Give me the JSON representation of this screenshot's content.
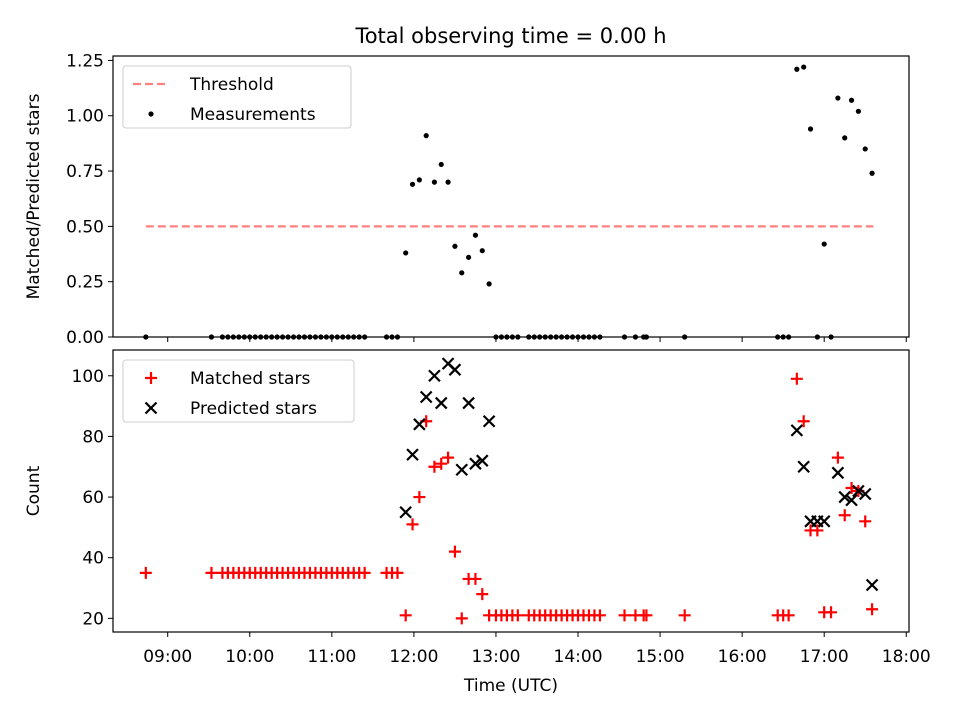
{
  "chart_data": {
    "type": "scatter",
    "title": "Total observing time = 0.00 h",
    "xlabel": "Time (UTC)",
    "x_ticks": [
      "09:00",
      "10:00",
      "11:00",
      "12:00",
      "13:00",
      "14:00",
      "15:00",
      "16:00",
      "17:00",
      "18:00"
    ],
    "x_range": [
      "08:20",
      "18:02"
    ],
    "panels": [
      {
        "ylabel": "Matched/Predicted stars",
        "ylim": [
          0,
          1.27
        ],
        "y_ticks": [
          "0.00",
          "0.25",
          "0.50",
          "0.75",
          "1.00",
          "1.25"
        ],
        "legend": {
          "position": "top-left"
        },
        "series": [
          {
            "name": "Threshold",
            "kind": "dashed-line",
            "color": "#ff8080",
            "points": [
              [
                "08:44",
                0.5
              ],
              [
                "17:36",
                0.5
              ]
            ]
          },
          {
            "name": "Measurements",
            "kind": "dot",
            "color": "#000000",
            "points": [
              [
                "08:44",
                0
              ],
              [
                "09:32",
                0
              ],
              [
                "09:40",
                0
              ],
              [
                "09:44",
                0
              ],
              [
                "09:48",
                0
              ],
              [
                "09:52",
                0
              ],
              [
                "09:56",
                0
              ],
              [
                "10:00",
                0
              ],
              [
                "10:04",
                0
              ],
              [
                "10:08",
                0
              ],
              [
                "10:12",
                0
              ],
              [
                "10:16",
                0
              ],
              [
                "10:20",
                0
              ],
              [
                "10:24",
                0
              ],
              [
                "10:28",
                0
              ],
              [
                "10:32",
                0
              ],
              [
                "10:36",
                0
              ],
              [
                "10:40",
                0
              ],
              [
                "10:44",
                0
              ],
              [
                "10:48",
                0
              ],
              [
                "10:52",
                0
              ],
              [
                "10:56",
                0
              ],
              [
                "11:00",
                0
              ],
              [
                "11:04",
                0
              ],
              [
                "11:08",
                0
              ],
              [
                "11:12",
                0
              ],
              [
                "11:16",
                0
              ],
              [
                "11:20",
                0
              ],
              [
                "11:24",
                0
              ],
              [
                "11:40",
                0
              ],
              [
                "11:44",
                0
              ],
              [
                "11:48",
                0
              ],
              [
                "11:54",
                0.38
              ],
              [
                "11:59",
                0.69
              ],
              [
                "12:04",
                0.71
              ],
              [
                "12:09",
                0.91
              ],
              [
                "12:15",
                0.7
              ],
              [
                "12:20",
                0.78
              ],
              [
                "12:25",
                0.7
              ],
              [
                "12:30",
                0.41
              ],
              [
                "12:35",
                0.29
              ],
              [
                "12:40",
                0.36
              ],
              [
                "12:45",
                0.46
              ],
              [
                "12:50",
                0.39
              ],
              [
                "12:55",
                0.24
              ],
              [
                "13:00",
                0
              ],
              [
                "13:04",
                0
              ],
              [
                "13:08",
                0
              ],
              [
                "13:12",
                0
              ],
              [
                "13:16",
                0
              ],
              [
                "13:24",
                0
              ],
              [
                "13:28",
                0
              ],
              [
                "13:32",
                0
              ],
              [
                "13:36",
                0
              ],
              [
                "13:40",
                0
              ],
              [
                "13:44",
                0
              ],
              [
                "13:48",
                0
              ],
              [
                "13:52",
                0
              ],
              [
                "13:56",
                0
              ],
              [
                "14:00",
                0
              ],
              [
                "14:04",
                0
              ],
              [
                "14:08",
                0
              ],
              [
                "14:12",
                0
              ],
              [
                "14:16",
                0
              ],
              [
                "14:34",
                0
              ],
              [
                "14:42",
                0
              ],
              [
                "14:48",
                0
              ],
              [
                "14:50",
                0
              ],
              [
                "15:18",
                0
              ],
              [
                "16:26",
                0
              ],
              [
                "16:30",
                0
              ],
              [
                "16:34",
                0
              ],
              [
                "16:40",
                1.21
              ],
              [
                "16:45",
                1.22
              ],
              [
                "16:50",
                0.94
              ],
              [
                "16:55",
                0
              ],
              [
                "17:00",
                0.42
              ],
              [
                "17:05",
                0
              ],
              [
                "17:10",
                1.08
              ],
              [
                "17:15",
                0.9
              ],
              [
                "17:20",
                1.07
              ],
              [
                "17:25",
                1.02
              ],
              [
                "17:30",
                0.85
              ],
              [
                "17:35",
                0.74
              ]
            ]
          }
        ]
      },
      {
        "ylabel": "Count",
        "ylim": [
          15.5,
          108.5
        ],
        "y_ticks": [
          "20",
          "40",
          "60",
          "80",
          "100"
        ],
        "legend": {
          "position": "top-left"
        },
        "series": [
          {
            "name": "Matched stars",
            "kind": "plus",
            "color": "#ff0000",
            "points": [
              [
                "08:44",
                35
              ],
              [
                "09:32",
                35
              ],
              [
                "09:40",
                35
              ],
              [
                "09:44",
                35
              ],
              [
                "09:48",
                35
              ],
              [
                "09:52",
                35
              ],
              [
                "09:56",
                35
              ],
              [
                "10:00",
                35
              ],
              [
                "10:04",
                35
              ],
              [
                "10:08",
                35
              ],
              [
                "10:12",
                35
              ],
              [
                "10:16",
                35
              ],
              [
                "10:20",
                35
              ],
              [
                "10:24",
                35
              ],
              [
                "10:28",
                35
              ],
              [
                "10:32",
                35
              ],
              [
                "10:36",
                35
              ],
              [
                "10:40",
                35
              ],
              [
                "10:44",
                35
              ],
              [
                "10:48",
                35
              ],
              [
                "10:52",
                35
              ],
              [
                "10:56",
                35
              ],
              [
                "11:00",
                35
              ],
              [
                "11:04",
                35
              ],
              [
                "11:08",
                35
              ],
              [
                "11:12",
                35
              ],
              [
                "11:16",
                35
              ],
              [
                "11:20",
                35
              ],
              [
                "11:24",
                35
              ],
              [
                "11:40",
                35
              ],
              [
                "11:44",
                35
              ],
              [
                "11:48",
                35
              ],
              [
                "11:54",
                21
              ],
              [
                "11:59",
                51
              ],
              [
                "12:04",
                60
              ],
              [
                "12:09",
                85
              ],
              [
                "12:15",
                70
              ],
              [
                "12:20",
                71
              ],
              [
                "12:25",
                73
              ],
              [
                "12:30",
                42
              ],
              [
                "12:35",
                20
              ],
              [
                "12:40",
                33
              ],
              [
                "12:45",
                33
              ],
              [
                "12:50",
                28
              ],
              [
                "12:55",
                21
              ],
              [
                "13:00",
                21
              ],
              [
                "13:04",
                21
              ],
              [
                "13:08",
                21
              ],
              [
                "13:12",
                21
              ],
              [
                "13:16",
                21
              ],
              [
                "13:24",
                21
              ],
              [
                "13:28",
                21
              ],
              [
                "13:32",
                21
              ],
              [
                "13:36",
                21
              ],
              [
                "13:40",
                21
              ],
              [
                "13:44",
                21
              ],
              [
                "13:48",
                21
              ],
              [
                "13:52",
                21
              ],
              [
                "13:56",
                21
              ],
              [
                "14:00",
                21
              ],
              [
                "14:04",
                21
              ],
              [
                "14:08",
                21
              ],
              [
                "14:12",
                21
              ],
              [
                "14:16",
                21
              ],
              [
                "14:34",
                21
              ],
              [
                "14:42",
                21
              ],
              [
                "14:48",
                21
              ],
              [
                "14:50",
                21
              ],
              [
                "15:18",
                21
              ],
              [
                "16:26",
                21
              ],
              [
                "16:30",
                21
              ],
              [
                "16:34",
                21
              ],
              [
                "16:40",
                99
              ],
              [
                "16:45",
                85
              ],
              [
                "16:50",
                49
              ],
              [
                "16:55",
                49
              ],
              [
                "17:00",
                22
              ],
              [
                "17:05",
                22
              ],
              [
                "17:10",
                73
              ],
              [
                "17:15",
                54
              ],
              [
                "17:20",
                63
              ],
              [
                "17:25",
                62
              ],
              [
                "17:30",
                52
              ],
              [
                "17:35",
                23
              ]
            ]
          },
          {
            "name": "Predicted stars",
            "kind": "x",
            "color": "#000000",
            "points": [
              [
                "11:54",
                55
              ],
              [
                "11:59",
                74
              ],
              [
                "12:04",
                84
              ],
              [
                "12:09",
                93
              ],
              [
                "12:15",
                100
              ],
              [
                "12:20",
                91
              ],
              [
                "12:25",
                104
              ],
              [
                "12:30",
                102
              ],
              [
                "12:35",
                69
              ],
              [
                "12:40",
                91
              ],
              [
                "12:45",
                71
              ],
              [
                "12:50",
                72
              ],
              [
                "12:55",
                85
              ],
              [
                "16:40",
                82
              ],
              [
                "16:45",
                70
              ],
              [
                "16:50",
                52
              ],
              [
                "16:55",
                52
              ],
              [
                "17:00",
                52
              ],
              [
                "17:10",
                68
              ],
              [
                "17:15",
                60
              ],
              [
                "17:20",
                59
              ],
              [
                "17:25",
                62
              ],
              [
                "17:30",
                61
              ],
              [
                "17:35",
                31
              ]
            ]
          }
        ]
      }
    ]
  }
}
